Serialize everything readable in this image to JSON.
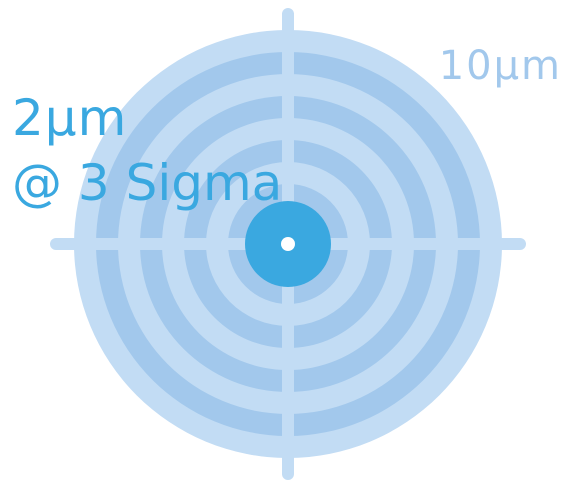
{
  "labels": {
    "outer_tolerance": "10µm",
    "accuracy_value": "2µm",
    "accuracy_note": "@ 3 Sigma"
  },
  "colors": {
    "light_ring": "#c2dcf4",
    "mid_ring": "#a2c8ec",
    "crosshair": "#c2dcf4",
    "bullseye": "#3aa8e0",
    "bullseye_dot": "#ffffff",
    "accuracy_text": "#3aa8e0",
    "outer_text": "#a2c8ec"
  }
}
